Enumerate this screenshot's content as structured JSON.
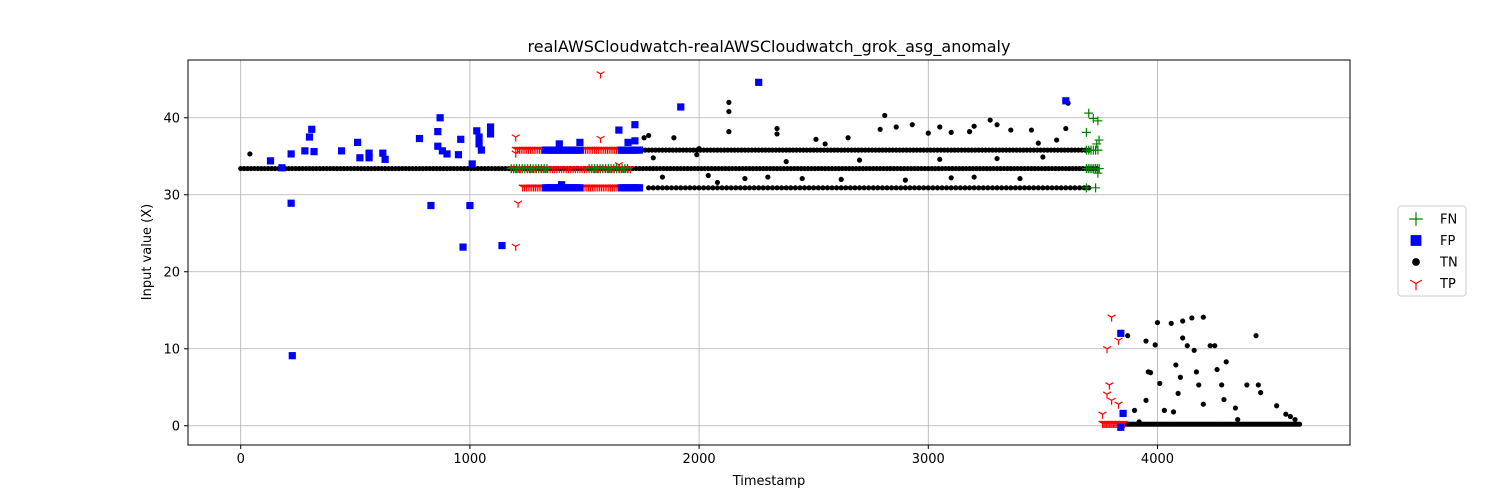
{
  "chart_data": {
    "type": "scatter",
    "title": "realAWSCloudwatch-realAWSCloudwatch_grok_asg_anomaly",
    "xlabel": "Timestamp",
    "ylabel": "Input value (X)",
    "xlim": [
      -230,
      4840
    ],
    "ylim": [
      -2.5,
      47.5
    ],
    "xticks": [
      0,
      1000,
      2000,
      3000,
      4000
    ],
    "yticks": [
      0,
      10,
      20,
      30,
      40
    ],
    "grid": true,
    "legend_position": "outside-right",
    "legend": [
      {
        "name": "FN",
        "marker": "plus",
        "color": "#008000"
      },
      {
        "name": "FP",
        "marker": "square",
        "color": "#0000ff"
      },
      {
        "name": "TN",
        "marker": "circle",
        "color": "#000000"
      },
      {
        "name": "TP",
        "marker": "tri_down",
        "color": "#ff0000"
      }
    ],
    "bands": [
      {
        "series": "TN",
        "x_start": 0,
        "x_end": 3740,
        "step": 15,
        "y": 33.4
      },
      {
        "series": "TN",
        "x_start": 1750,
        "x_end": 3700,
        "step": 15,
        "y": 35.8
      },
      {
        "series": "TN",
        "x_start": 1780,
        "x_end": 3700,
        "step": 20,
        "y": 30.9
      },
      {
        "series": "TN",
        "x_start": 3860,
        "x_end": 4620,
        "step": 8,
        "y": 0.2
      },
      {
        "series": "TP",
        "x_start": 1200,
        "x_end": 1720,
        "step": 8,
        "y": 35.9
      },
      {
        "series": "TP",
        "x_start": 1230,
        "x_end": 1720,
        "step": 8,
        "y": 31.0
      },
      {
        "series": "TP",
        "x_start": 1180,
        "x_end": 1700,
        "step": 10,
        "y": 33.4
      },
      {
        "series": "TP",
        "x_start": 3760,
        "x_end": 3860,
        "step": 6,
        "y": 0.3
      },
      {
        "series": "FP",
        "x_start": 1330,
        "x_end": 1480,
        "step": 10,
        "y": 35.8
      },
      {
        "series": "FP",
        "x_start": 1330,
        "x_end": 1480,
        "step": 10,
        "y": 30.9
      },
      {
        "series": "FP",
        "x_start": 1660,
        "x_end": 1740,
        "step": 10,
        "y": 30.9
      },
      {
        "series": "FP",
        "x_start": 1660,
        "x_end": 1740,
        "step": 10,
        "y": 35.8
      },
      {
        "series": "FN",
        "x_start": 1180,
        "x_end": 1340,
        "step": 12,
        "y": 33.4
      },
      {
        "series": "FN",
        "x_start": 1520,
        "x_end": 1690,
        "step": 12,
        "y": 33.4
      },
      {
        "series": "FN",
        "x_start": 3690,
        "x_end": 3750,
        "step": 8,
        "y": 33.4
      },
      {
        "series": "FN",
        "x_start": 3690,
        "x_end": 3740,
        "step": 10,
        "y": 35.8
      }
    ],
    "series": [
      {
        "name": "FN",
        "points": [
          [
            3700,
            40.6
          ],
          [
            3720,
            39.9
          ],
          [
            3740,
            39.6
          ],
          [
            3690,
            38.1
          ],
          [
            3745,
            37.1
          ],
          [
            3740,
            32.8
          ],
          [
            3690,
            30.9
          ],
          [
            3730,
            30.9
          ],
          [
            3735,
            36.6
          ]
        ]
      },
      {
        "name": "FP",
        "points": [
          [
            130,
            34.4
          ],
          [
            180,
            33.5
          ],
          [
            220,
            35.3
          ],
          [
            220,
            28.9
          ],
          [
            225,
            9.1
          ],
          [
            280,
            35.7
          ],
          [
            300,
            37.5
          ],
          [
            310,
            38.5
          ],
          [
            320,
            35.6
          ],
          [
            440,
            35.7
          ],
          [
            510,
            36.8
          ],
          [
            520,
            34.8
          ],
          [
            560,
            35.4
          ],
          [
            560,
            34.8
          ],
          [
            620,
            35.4
          ],
          [
            630,
            34.6
          ],
          [
            780,
            37.3
          ],
          [
            830,
            28.6
          ],
          [
            860,
            38.2
          ],
          [
            860,
            36.3
          ],
          [
            870,
            40.0
          ],
          [
            880,
            35.7
          ],
          [
            900,
            35.3
          ],
          [
            950,
            35.2
          ],
          [
            960,
            37.2
          ],
          [
            970,
            23.2
          ],
          [
            1000,
            28.6
          ],
          [
            1010,
            34.0
          ],
          [
            1030,
            38.3
          ],
          [
            1040,
            37.5
          ],
          [
            1040,
            36.6
          ],
          [
            1050,
            35.8
          ],
          [
            1090,
            38.8
          ],
          [
            1090,
            37.9
          ],
          [
            1140,
            23.4
          ],
          [
            1390,
            36.6
          ],
          [
            1400,
            31.3
          ],
          [
            1480,
            36.8
          ],
          [
            1650,
            38.4
          ],
          [
            1690,
            36.8
          ],
          [
            1720,
            39.1
          ],
          [
            1720,
            37.0
          ],
          [
            1920,
            41.4
          ],
          [
            2260,
            44.6
          ],
          [
            3600,
            42.2
          ],
          [
            3840,
            12.0
          ],
          [
            3850,
            1.6
          ],
          [
            3840,
            -0.2
          ]
        ]
      },
      {
        "name": "TN",
        "points": [
          [
            40,
            35.3
          ],
          [
            3610,
            41.9
          ],
          [
            3600,
            38.6
          ],
          [
            3560,
            37.1
          ],
          [
            3450,
            38.4
          ],
          [
            3480,
            36.7
          ],
          [
            3360,
            38.4
          ],
          [
            3300,
            39.1
          ],
          [
            3270,
            39.7
          ],
          [
            3200,
            38.9
          ],
          [
            3180,
            38.2
          ],
          [
            3100,
            38.1
          ],
          [
            3050,
            38.8
          ],
          [
            3000,
            38.0
          ],
          [
            2930,
            39.1
          ],
          [
            2860,
            38.8
          ],
          [
            2810,
            40.3
          ],
          [
            2790,
            38.5
          ],
          [
            2650,
            37.4
          ],
          [
            2550,
            36.6
          ],
          [
            2510,
            37.2
          ],
          [
            2340,
            38.6
          ],
          [
            2340,
            37.9
          ],
          [
            2130,
            42.0
          ],
          [
            2130,
            40.8
          ],
          [
            2130,
            38.2
          ],
          [
            2000,
            36.0
          ],
          [
            1890,
            37.4
          ],
          [
            1780,
            37.7
          ],
          [
            1760,
            37.4
          ],
          [
            2040,
            32.5
          ],
          [
            2080,
            31.6
          ],
          [
            2200,
            32.1
          ],
          [
            2300,
            32.3
          ],
          [
            2450,
            32.1
          ],
          [
            2620,
            32.0
          ],
          [
            2900,
            31.9
          ],
          [
            3100,
            32.2
          ],
          [
            3200,
            32.3
          ],
          [
            3400,
            32.1
          ],
          [
            2380,
            34.3
          ],
          [
            2700,
            34.5
          ],
          [
            3050,
            34.6
          ],
          [
            3300,
            34.7
          ],
          [
            3500,
            34.9
          ],
          [
            1990,
            35.2
          ],
          [
            1840,
            32.3
          ],
          [
            1800,
            34.8
          ],
          [
            3870,
            11.7
          ],
          [
            3900,
            2.0
          ],
          [
            3920,
            0.5
          ],
          [
            3950,
            11.0
          ],
          [
            3960,
            7.0
          ],
          [
            3970,
            6.9
          ],
          [
            3990,
            10.5
          ],
          [
            4000,
            13.4
          ],
          [
            4030,
            2.0
          ],
          [
            4060,
            13.3
          ],
          [
            4070,
            1.8
          ],
          [
            4080,
            7.9
          ],
          [
            4090,
            4.2
          ],
          [
            4110,
            13.6
          ],
          [
            4110,
            11.4
          ],
          [
            4130,
            10.4
          ],
          [
            4150,
            14.0
          ],
          [
            4160,
            9.8
          ],
          [
            4170,
            7.0
          ],
          [
            4180,
            5.3
          ],
          [
            4200,
            14.1
          ],
          [
            4200,
            2.8
          ],
          [
            4230,
            10.4
          ],
          [
            4250,
            10.4
          ],
          [
            4260,
            7.3
          ],
          [
            4280,
            5.3
          ],
          [
            4290,
            3.4
          ],
          [
            4300,
            8.3
          ],
          [
            4340,
            2.3
          ],
          [
            4350,
            0.8
          ],
          [
            4390,
            5.3
          ],
          [
            4430,
            11.7
          ],
          [
            4440,
            5.3
          ],
          [
            4450,
            4.3
          ],
          [
            4520,
            2.6
          ],
          [
            4560,
            1.5
          ],
          [
            4580,
            1.2
          ],
          [
            4600,
            0.8
          ],
          [
            3950,
            3.3
          ],
          [
            4010,
            5.5
          ],
          [
            4100,
            6.3
          ]
        ]
      },
      {
        "name": "TP",
        "points": [
          [
            1570,
            45.7
          ],
          [
            1200,
            37.5
          ],
          [
            1200,
            35.4
          ],
          [
            1570,
            37.3
          ],
          [
            1210,
            28.9
          ],
          [
            1200,
            23.3
          ],
          [
            1650,
            33.9
          ],
          [
            3800,
            14.1
          ],
          [
            3830,
            11.1
          ],
          [
            3780,
            10.0
          ],
          [
            3790,
            5.3
          ],
          [
            3780,
            4.1
          ],
          [
            3800,
            3.3
          ],
          [
            3830,
            2.8
          ],
          [
            3760,
            1.5
          ]
        ]
      }
    ]
  }
}
